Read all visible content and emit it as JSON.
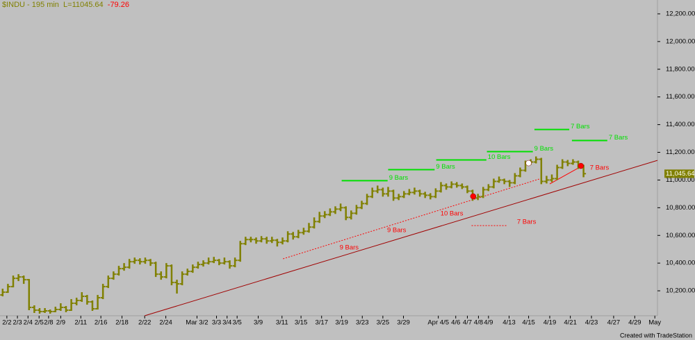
{
  "chart_data": {
    "type": "ohlc",
    "title": {
      "symbol": "$INDU - 195 min",
      "last": "L=11045.64",
      "change": "-79.26"
    },
    "footer": "Created with TradeStation",
    "color": "#808000",
    "background": "#c0c0c0",
    "grid": false,
    "xlim": [
      -0.5,
      124
    ],
    "ylim": [
      10020,
      12300
    ],
    "yticks": [
      {
        "value": 10200,
        "label": "10,200.00"
      },
      {
        "value": 10400,
        "label": "10,400.00"
      },
      {
        "value": 10600,
        "label": "10,600.00"
      },
      {
        "value": 10800,
        "label": "10,800.00"
      },
      {
        "value": 11000,
        "label": "11,000.00"
      },
      {
        "value": 11200,
        "label": "11,200.00"
      },
      {
        "value": 11400,
        "label": "11,400.00"
      },
      {
        "value": 11600,
        "label": "11,600.00"
      },
      {
        "value": 11800,
        "label": "11,800.00"
      },
      {
        "value": 12000,
        "label": "12,000.00"
      },
      {
        "value": 12200,
        "label": "12,200.00"
      }
    ],
    "xticks": [
      {
        "value": 0.8,
        "label": "2/2"
      },
      {
        "value": 2.8,
        "label": "2/3"
      },
      {
        "value": 4.8,
        "label": "2/4"
      },
      {
        "value": 6.9,
        "label": "2/5"
      },
      {
        "value": 8.7,
        "label": "2/8"
      },
      {
        "value": 11,
        "label": "2/9"
      },
      {
        "value": 14.8,
        "label": "2/11"
      },
      {
        "value": 18.6,
        "label": "2/16"
      },
      {
        "value": 22.6,
        "label": "2/18"
      },
      {
        "value": 26.9,
        "label": "2/22"
      },
      {
        "value": 30.9,
        "label": "2/24"
      },
      {
        "value": 36.8,
        "label": "Mar 3/2"
      },
      {
        "value": 40.5,
        "label": "3/3"
      },
      {
        "value": 42.5,
        "label": "3/4"
      },
      {
        "value": 44.4,
        "label": "3/5"
      },
      {
        "value": 48.4,
        "label": "3/9"
      },
      {
        "value": 52.9,
        "label": "3/11"
      },
      {
        "value": 56.5,
        "label": "3/15"
      },
      {
        "value": 60.4,
        "label": "3/17"
      },
      {
        "value": 64.2,
        "label": "3/19"
      },
      {
        "value": 68.1,
        "label": "3/23"
      },
      {
        "value": 72,
        "label": "3/25"
      },
      {
        "value": 75.9,
        "label": "3/29"
      },
      {
        "value": 82.5,
        "label": "Apr 4/5"
      },
      {
        "value": 85.8,
        "label": "4/6"
      },
      {
        "value": 88,
        "label": "4/7"
      },
      {
        "value": 90.1,
        "label": "4/8"
      },
      {
        "value": 92,
        "label": "4/9"
      },
      {
        "value": 95.9,
        "label": "4/13"
      },
      {
        "value": 99.6,
        "label": "4/15"
      },
      {
        "value": 103.6,
        "label": "4/19"
      },
      {
        "value": 107.5,
        "label": "4/21"
      },
      {
        "value": 111.5,
        "label": "4/23"
      },
      {
        "value": 115.7,
        "label": "4/27"
      },
      {
        "value": 119.7,
        "label": "4/29"
      },
      {
        "value": 123.5,
        "label": "May"
      }
    ],
    "last_label": {
      "value": 11045.64,
      "label": "11,045.64"
    },
    "ohlc": [
      [
        10170,
        10215,
        10160,
        10190
      ],
      [
        10190,
        10250,
        10185,
        10230
      ],
      [
        10230,
        10310,
        10225,
        10290
      ],
      [
        10290,
        10320,
        10270,
        10300
      ],
      [
        10300,
        10310,
        10250,
        10280
      ],
      [
        10280,
        10285,
        10060,
        10080
      ],
      [
        10080,
        10095,
        10040,
        10060
      ],
      [
        10060,
        10075,
        10035,
        10050
      ],
      [
        10050,
        10075,
        10040,
        10055
      ],
      [
        10055,
        10065,
        10035,
        10050
      ],
      [
        10050,
        10085,
        10045,
        10065
      ],
      [
        10065,
        10110,
        10055,
        10080
      ],
      [
        10080,
        10090,
        10045,
        10060
      ],
      [
        10060,
        10140,
        10055,
        10110
      ],
      [
        10110,
        10150,
        10095,
        10130
      ],
      [
        10130,
        10190,
        10120,
        10160
      ],
      [
        10160,
        10170,
        10100,
        10120
      ],
      [
        10120,
        10130,
        10055,
        10070
      ],
      [
        10070,
        10170,
        10065,
        10150
      ],
      [
        10150,
        10250,
        10140,
        10230
      ],
      [
        10230,
        10310,
        10220,
        10290
      ],
      [
        10290,
        10340,
        10280,
        10320
      ],
      [
        10320,
        10380,
        10310,
        10360
      ],
      [
        10360,
        10400,
        10345,
        10370
      ],
      [
        10370,
        10430,
        10360,
        10410
      ],
      [
        10410,
        10440,
        10395,
        10420
      ],
      [
        10420,
        10435,
        10390,
        10410
      ],
      [
        10410,
        10440,
        10395,
        10420
      ],
      [
        10420,
        10430,
        10380,
        10400
      ],
      [
        10400,
        10410,
        10300,
        10320
      ],
      [
        10320,
        10340,
        10280,
        10300
      ],
      [
        10300,
        10400,
        10290,
        10380
      ],
      [
        10380,
        10390,
        10240,
        10260
      ],
      [
        10260,
        10280,
        10180,
        10250
      ],
      [
        10250,
        10340,
        10240,
        10320
      ],
      [
        10320,
        10360,
        10310,
        10340
      ],
      [
        10340,
        10390,
        10330,
        10370
      ],
      [
        10370,
        10410,
        10360,
        10390
      ],
      [
        10390,
        10420,
        10375,
        10400
      ],
      [
        10400,
        10440,
        10390,
        10410
      ],
      [
        10410,
        10445,
        10400,
        10420
      ],
      [
        10420,
        10430,
        10385,
        10400
      ],
      [
        10400,
        10440,
        10390,
        10410
      ],
      [
        10410,
        10420,
        10360,
        10380
      ],
      [
        10380,
        10440,
        10370,
        10420
      ],
      [
        10420,
        10560,
        10410,
        10540
      ],
      [
        10540,
        10590,
        10530,
        10570
      ],
      [
        10570,
        10590,
        10550,
        10570
      ],
      [
        10570,
        10585,
        10540,
        10560
      ],
      [
        10560,
        10595,
        10550,
        10575
      ],
      [
        10575,
        10590,
        10540,
        10560
      ],
      [
        10560,
        10590,
        10545,
        10565
      ],
      [
        10565,
        10575,
        10520,
        10550
      ],
      [
        10550,
        10585,
        10535,
        10560
      ],
      [
        10560,
        10630,
        10550,
        10610
      ],
      [
        10610,
        10625,
        10570,
        10590
      ],
      [
        10590,
        10640,
        10580,
        10620
      ],
      [
        10620,
        10655,
        10605,
        10630
      ],
      [
        10630,
        10690,
        10620,
        10660
      ],
      [
        10660,
        10730,
        10650,
        10700
      ],
      [
        10700,
        10770,
        10690,
        10740
      ],
      [
        10740,
        10775,
        10725,
        10750
      ],
      [
        10750,
        10795,
        10740,
        10770
      ],
      [
        10770,
        10810,
        10755,
        10790
      ],
      [
        10790,
        10830,
        10775,
        10800
      ],
      [
        10800,
        10810,
        10710,
        10730
      ],
      [
        10730,
        10780,
        10715,
        10760
      ],
      [
        10760,
        10820,
        10750,
        10800
      ],
      [
        10800,
        10850,
        10790,
        10830
      ],
      [
        10830,
        10900,
        10820,
        10880
      ],
      [
        10880,
        10945,
        10870,
        10920
      ],
      [
        10920,
        10960,
        10905,
        10930
      ],
      [
        10930,
        10945,
        10880,
        10900
      ],
      [
        10900,
        10950,
        10880,
        10920
      ],
      [
        10920,
        10930,
        10850,
        10870
      ],
      [
        10870,
        10900,
        10855,
        10880
      ],
      [
        10880,
        10920,
        10870,
        10900
      ],
      [
        10900,
        10935,
        10890,
        10910
      ],
      [
        10910,
        10945,
        10895,
        10920
      ],
      [
        10920,
        10930,
        10880,
        10900
      ],
      [
        10900,
        10915,
        10870,
        10890
      ],
      [
        10890,
        10905,
        10860,
        10880
      ],
      [
        10880,
        10940,
        10870,
        10920
      ],
      [
        10920,
        10985,
        10910,
        10960
      ],
      [
        10960,
        10975,
        10930,
        10950
      ],
      [
        10950,
        10990,
        10940,
        10970
      ],
      [
        10970,
        10985,
        10945,
        10960
      ],
      [
        10960,
        10975,
        10935,
        10950
      ],
      [
        10950,
        10960,
        10905,
        10920
      ],
      [
        10920,
        10930,
        10850,
        10870
      ],
      [
        10870,
        10900,
        10855,
        10880
      ],
      [
        10880,
        10950,
        10870,
        10930
      ],
      [
        10930,
        10970,
        10920,
        10950
      ],
      [
        10950,
        11010,
        10940,
        10990
      ],
      [
        10990,
        11025,
        10980,
        11000
      ],
      [
        11000,
        11010,
        10970,
        10990
      ],
      [
        10990,
        11000,
        10950,
        10980
      ],
      [
        10980,
        11050,
        10970,
        11030
      ],
      [
        11030,
        11090,
        11020,
        11070
      ],
      [
        11070,
        11140,
        11060,
        11120
      ],
      [
        11120,
        11150,
        11110,
        11130
      ],
      [
        11130,
        11170,
        11120,
        11150
      ],
      [
        11150,
        11160,
        10970,
        10990
      ],
      [
        10990,
        11030,
        10975,
        11000
      ],
      [
        11000,
        11040,
        10985,
        11010
      ],
      [
        11010,
        11110,
        11000,
        11090
      ],
      [
        11090,
        11150,
        11080,
        11130
      ],
      [
        11130,
        11145,
        11100,
        11120
      ],
      [
        11120,
        11150,
        11110,
        11130
      ],
      [
        11130,
        11140,
        11080,
        11100
      ],
      [
        11100,
        11110,
        11020,
        11045.64
      ]
    ],
    "green_levels": {
      "color": "#00e000",
      "items": [
        {
          "label": "9 Bars",
          "level": 10995,
          "x": [
            64.2,
            72.9
          ]
        },
        {
          "label": "9 Bars",
          "level": 11075,
          "x": [
            73.0,
            81.8
          ]
        },
        {
          "label": "10 Bars",
          "level": 11145,
          "x": [
            82.1,
            91.6
          ]
        },
        {
          "label": "9 Bars",
          "level": 11205,
          "x": [
            91.7,
            100.4
          ]
        },
        {
          "label": "7 Bars",
          "level": 11365,
          "x": [
            100.7,
            107.3
          ]
        },
        {
          "label": "7 Bars",
          "level": 11285,
          "x": [
            107.8,
            114.5
          ]
        }
      ]
    },
    "red_labels": {
      "color": "#ff0000",
      "items": [
        {
          "label": "9 Bars",
          "x": 63.8,
          "y": 10511
        },
        {
          "label": "9 Bars",
          "x": 72.8,
          "y": 10636
        },
        {
          "label": "10 Bars",
          "x": 82.9,
          "y": 10757
        },
        {
          "label": "7 Bars",
          "x": 97.4,
          "y": 10697
        },
        {
          "label": "7 Bars",
          "x": 111.2,
          "y": 11087
        }
      ]
    },
    "lines": [
      {
        "color": "#a00000",
        "style": "solid",
        "x": [
          26.9,
          124
        ],
        "y": [
          10020,
          11142
        ]
      },
      {
        "color": "#ff0000",
        "style": "dashed",
        "x": [
          53.1,
          101.6
        ],
        "y": [
          10431,
          11007
        ]
      },
      {
        "color": "#ff0000",
        "style": "dashed",
        "x": [
          88.8,
          95.4
        ],
        "y": [
          10671,
          10671
        ]
      },
      {
        "color": "#ff0000",
        "style": "solid",
        "x": [
          103.6,
          109.5
        ],
        "y": [
          10972,
          11097
        ]
      }
    ],
    "markers": [
      {
        "x": 89.1,
        "y": 10882,
        "color": "#ff0000"
      },
      {
        "x": 109.5,
        "y": 11102,
        "color": "#ff0000"
      },
      {
        "x": 99.6,
        "y": 11122,
        "color": "#ffffff"
      }
    ]
  }
}
